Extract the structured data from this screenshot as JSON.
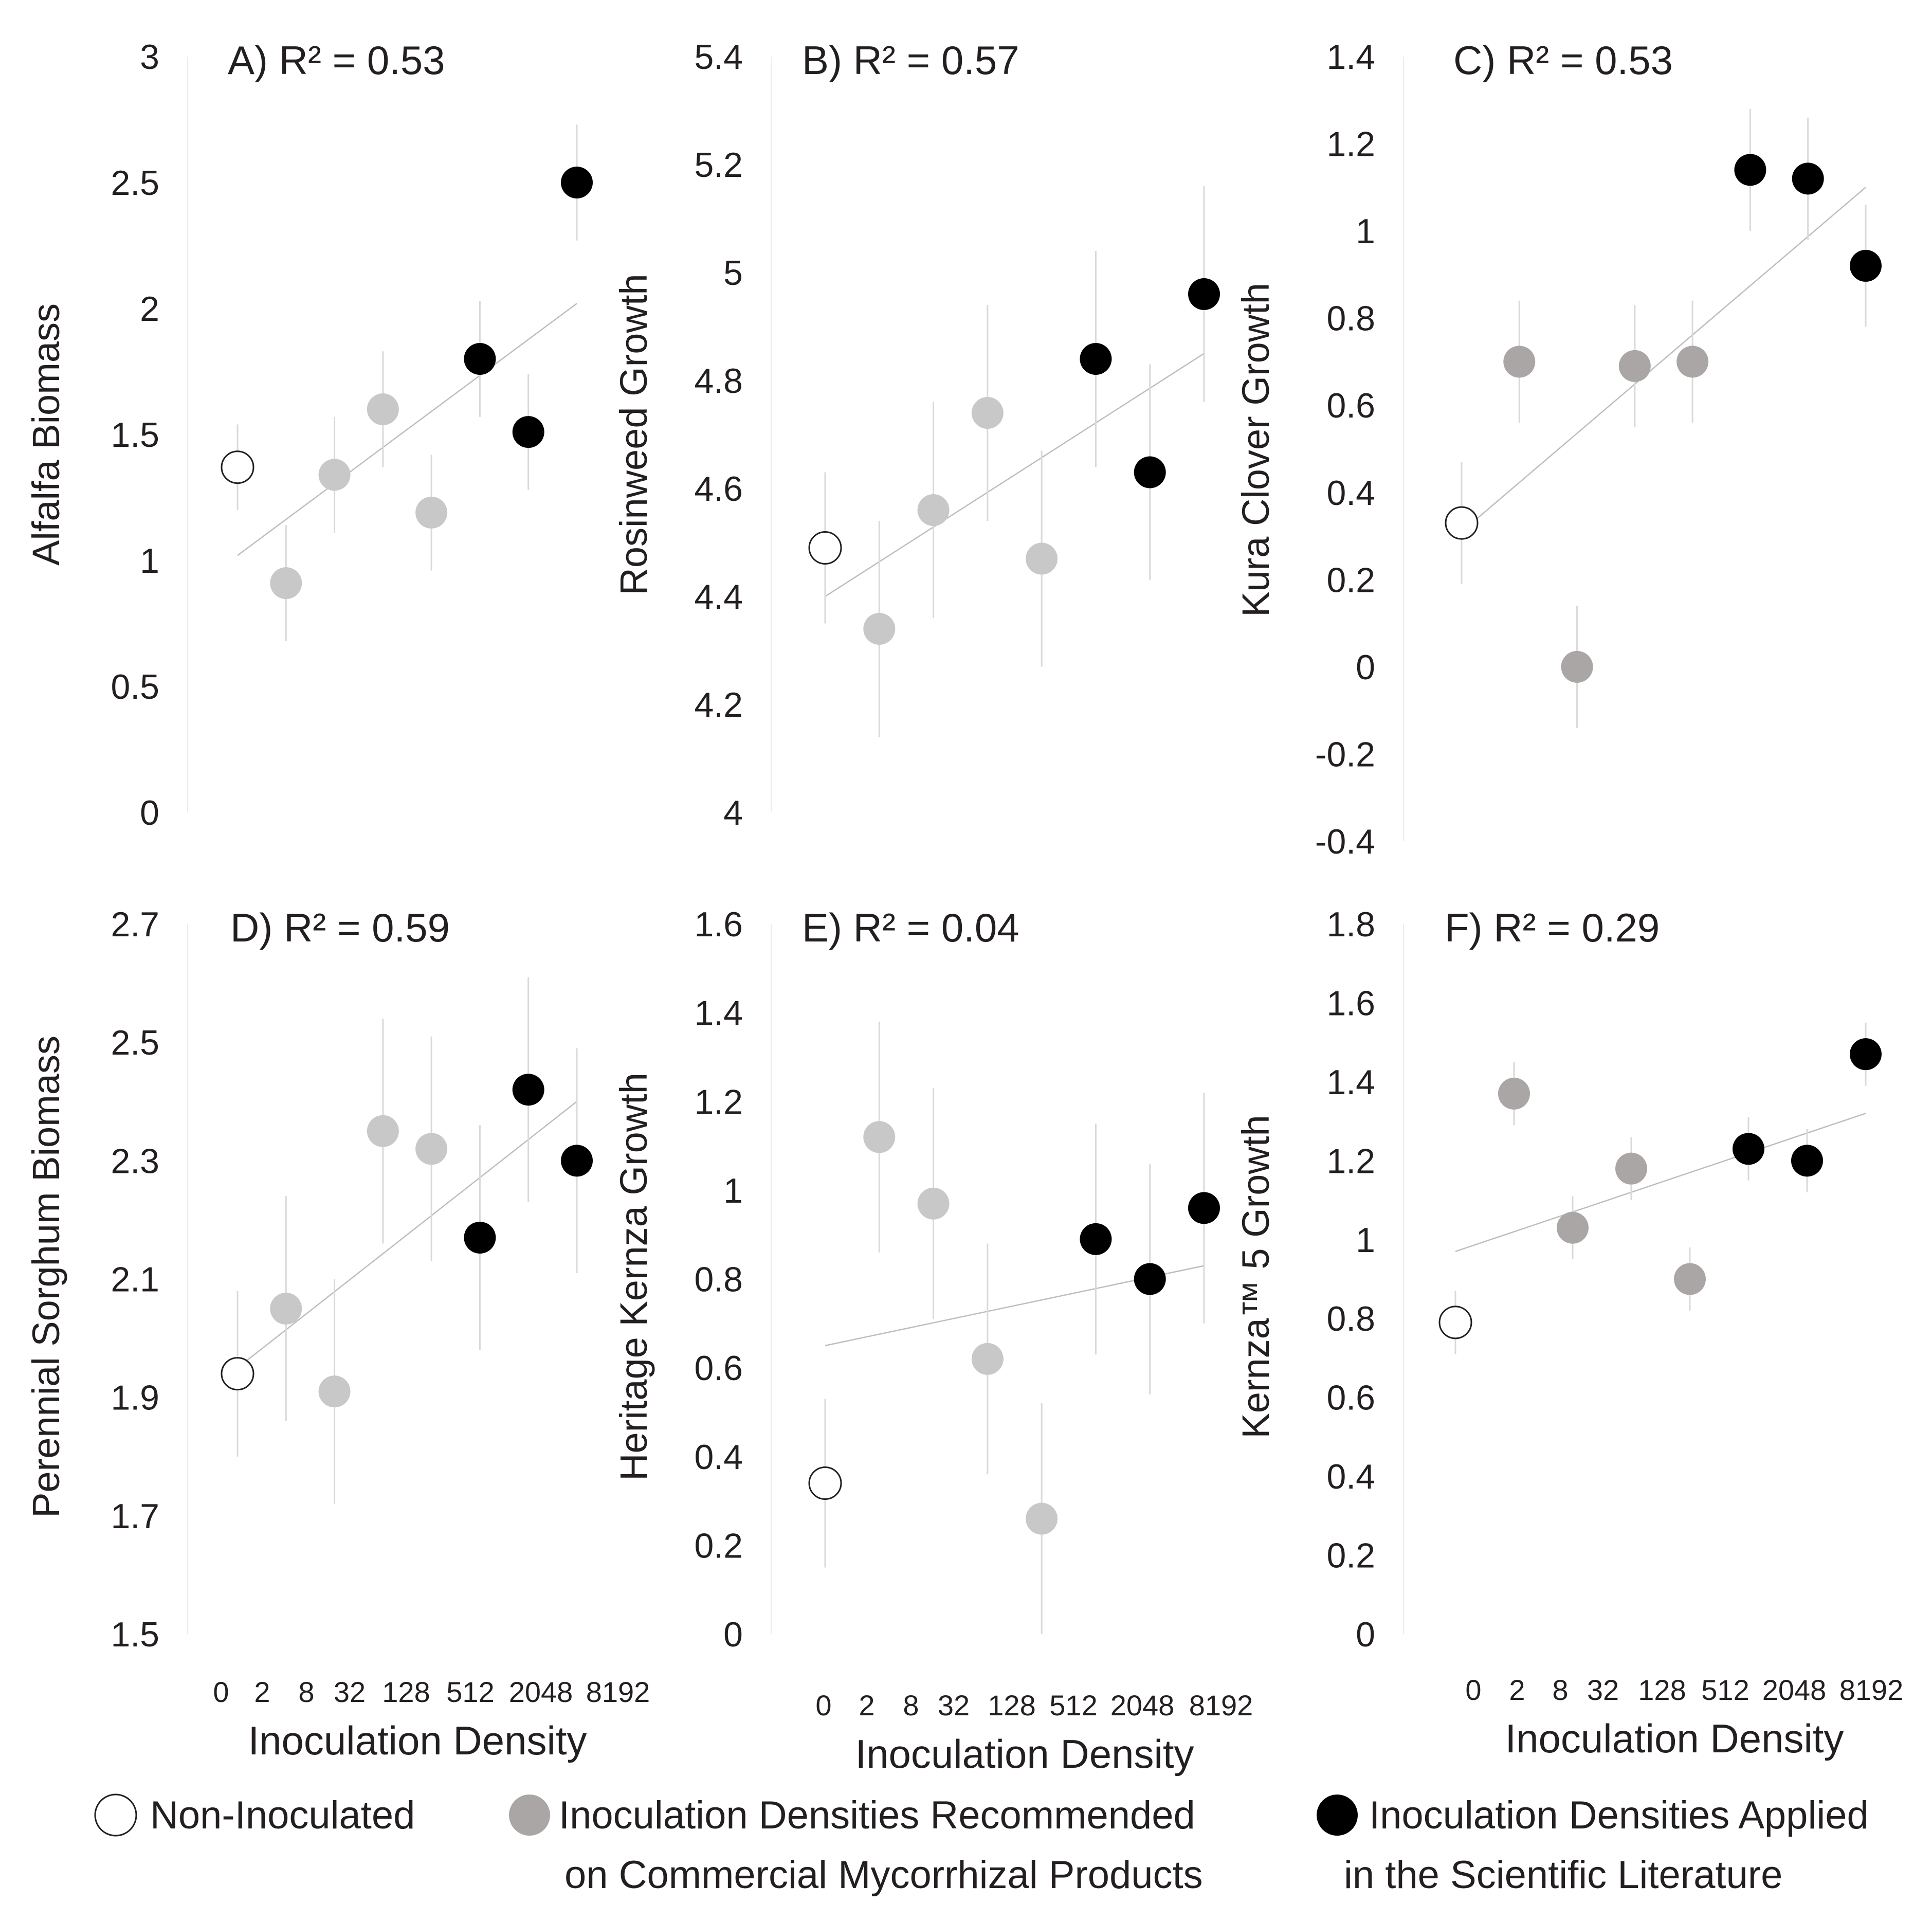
{
  "chart_data": [
    {
      "type": "scatter",
      "panel": "A",
      "title": "A) R² = 0.53",
      "ylabel": "Alfalfa Biomass",
      "xlabel": "Inoculation Density",
      "x_tick_labels": [
        "0",
        "2",
        "8",
        "32",
        "128",
        "512",
        "2048",
        "8192"
      ],
      "y_ticks": [
        0,
        0.5,
        1,
        1.5,
        2,
        2.5,
        3
      ],
      "y_tick_labels": [
        "0",
        "0.5",
        "1",
        "1.5",
        "2",
        "2.5",
        "3"
      ],
      "ylim": [
        0,
        3
      ],
      "trendline": {
        "x": [
          0,
          7
        ],
        "y": [
          1.02,
          2.02
        ]
      },
      "points": [
        {
          "x": 0,
          "y": 1.37,
          "error": 0.17,
          "group": "non"
        },
        {
          "x": 1,
          "y": 0.91,
          "error": 0.23,
          "group": "com"
        },
        {
          "x": 2,
          "y": 1.34,
          "error": 0.23,
          "group": "com"
        },
        {
          "x": 3,
          "y": 1.6,
          "error": 0.23,
          "group": "com"
        },
        {
          "x": 4,
          "y": 1.19,
          "error": 0.23,
          "group": "com"
        },
        {
          "x": 5,
          "y": 1.8,
          "error": 0.23,
          "group": "sci"
        },
        {
          "x": 6,
          "y": 1.51,
          "error": 0.23,
          "group": "sci"
        },
        {
          "x": 7,
          "y": 2.5,
          "error": 0.23,
          "group": "sci"
        }
      ]
    },
    {
      "type": "scatter",
      "panel": "B",
      "title": "B) R² = 0.57",
      "ylabel": "Rosinweed  Growth",
      "xlabel": "Inoculation Density",
      "x_tick_labels": [
        "0",
        "2",
        "8",
        "32",
        "128",
        "512",
        "2048",
        "8192"
      ],
      "y_ticks": [
        4,
        4.2,
        4.4,
        4.6,
        4.8,
        5,
        5.2,
        5.4
      ],
      "y_tick_labels": [
        "4",
        "4.2",
        "4.4",
        "4.6",
        "4.8",
        "5",
        "5.2",
        "5.4"
      ],
      "ylim": [
        4,
        5.4
      ],
      "trendline": {
        "x": [
          0,
          7
        ],
        "y": [
          4.4,
          4.85
        ]
      },
      "points": [
        {
          "x": 0,
          "y": 4.49,
          "error": 0.14,
          "group": "non"
        },
        {
          "x": 1,
          "y": 4.34,
          "error": 0.2,
          "group": "com"
        },
        {
          "x": 2,
          "y": 4.56,
          "error": 0.2,
          "group": "com"
        },
        {
          "x": 3,
          "y": 4.74,
          "error": 0.2,
          "group": "com"
        },
        {
          "x": 4,
          "y": 4.47,
          "error": 0.2,
          "group": "com"
        },
        {
          "x": 5,
          "y": 4.84,
          "error": 0.2,
          "group": "sci"
        },
        {
          "x": 6,
          "y": 4.63,
          "error": 0.2,
          "group": "sci"
        },
        {
          "x": 7,
          "y": 4.96,
          "error": 0.2,
          "group": "sci"
        }
      ]
    },
    {
      "type": "scatter",
      "panel": "C",
      "title": "C) R² = 0.53",
      "ylabel": "Kura Clover Growth",
      "xlabel": "Inoculation Density",
      "x_tick_labels": [
        "0",
        "2",
        "8",
        "32",
        "128",
        "512",
        "2048",
        "8192"
      ],
      "y_ticks": [
        -0.4,
        -0.2,
        0,
        0.2,
        0.4,
        0.6,
        0.8,
        1,
        1.2,
        1.4
      ],
      "y_tick_labels": [
        "-0.4",
        "-0.2",
        "0",
        "0.2",
        "0.4",
        "0.6",
        "0.8",
        "1",
        "1.2",
        "1.4"
      ],
      "ylim": [
        -0.4,
        1.4
      ],
      "trendline": {
        "x": [
          0,
          7
        ],
        "y": [
          0.31,
          1.1
        ]
      },
      "points": [
        {
          "x": 0,
          "y": 0.33,
          "error": 0.14,
          "group": "non"
        },
        {
          "x": 1,
          "y": 0.7,
          "error": 0.14,
          "group": "com"
        },
        {
          "x": 2,
          "y": 0.0,
          "error": 0.14,
          "group": "com"
        },
        {
          "x": 3,
          "y": 0.69,
          "error": 0.14,
          "group": "com"
        },
        {
          "x": 4,
          "y": 0.7,
          "error": 0.14,
          "group": "com"
        },
        {
          "x": 5,
          "y": 1.14,
          "error": 0.14,
          "group": "sci"
        },
        {
          "x": 6,
          "y": 1.12,
          "error": 0.14,
          "group": "sci"
        },
        {
          "x": 7,
          "y": 0.92,
          "error": 0.14,
          "group": "sci"
        }
      ]
    },
    {
      "type": "scatter",
      "panel": "D",
      "title": "D) R² = 0.59",
      "ylabel": "Perennial Sorghum Biomass",
      "xlabel": "Inoculation Density",
      "x_tick_labels": [
        "0",
        "2",
        "8",
        "32",
        "128",
        "512",
        "2048",
        "8192"
      ],
      "y_ticks": [
        1.5,
        1.7,
        1.9,
        2.1,
        2.3,
        2.5,
        2.7
      ],
      "y_tick_labels": [
        "1.5",
        "1.7",
        "1.9",
        "2.1",
        "2.3",
        "2.5",
        "2.7"
      ],
      "ylim": [
        1.5,
        2.7
      ],
      "trendline": {
        "x": [
          0,
          7
        ],
        "y": [
          1.95,
          2.4
        ]
      },
      "points": [
        {
          "x": 0,
          "y": 1.94,
          "error": 0.14,
          "group": "non"
        },
        {
          "x": 1,
          "y": 2.05,
          "error": 0.19,
          "group": "com"
        },
        {
          "x": 2,
          "y": 1.91,
          "error": 0.19,
          "group": "com"
        },
        {
          "x": 3,
          "y": 2.35,
          "error": 0.19,
          "group": "com"
        },
        {
          "x": 4,
          "y": 2.32,
          "error": 0.19,
          "group": "com"
        },
        {
          "x": 5,
          "y": 2.17,
          "error": 0.19,
          "group": "sci"
        },
        {
          "x": 6,
          "y": 2.42,
          "error": 0.19,
          "group": "sci"
        },
        {
          "x": 7,
          "y": 2.3,
          "error": 0.19,
          "group": "sci"
        }
      ]
    },
    {
      "type": "scatter",
      "panel": "E",
      "title": "E) R² = 0.04",
      "ylabel": "Heritage Kernza Growth",
      "xlabel": "Inoculation Density",
      "x_tick_labels": [
        "0",
        "2",
        "8",
        "32",
        "128",
        "512",
        "2048",
        "8192"
      ],
      "y_ticks": [
        0,
        0.2,
        0.4,
        0.6,
        0.8,
        1,
        1.2,
        1.4,
        1.6
      ],
      "y_tick_labels": [
        "0",
        "0.2",
        "0.4",
        "0.6",
        "0.8",
        "1",
        "1.2",
        "1.4",
        "1.6"
      ],
      "ylim": [
        0,
        1.6
      ],
      "trendline": {
        "x": [
          0,
          7
        ],
        "y": [
          0.65,
          0.83
        ]
      },
      "points": [
        {
          "x": 0,
          "y": 0.34,
          "error": 0.19,
          "group": "non"
        },
        {
          "x": 1,
          "y": 1.12,
          "error": 0.26,
          "group": "com"
        },
        {
          "x": 2,
          "y": 0.97,
          "error": 0.26,
          "group": "com"
        },
        {
          "x": 3,
          "y": 0.62,
          "error": 0.26,
          "group": "com"
        },
        {
          "x": 4,
          "y": 0.26,
          "error": 0.26,
          "group": "com"
        },
        {
          "x": 5,
          "y": 0.89,
          "error": 0.26,
          "group": "sci"
        },
        {
          "x": 6,
          "y": 0.8,
          "error": 0.26,
          "group": "sci"
        },
        {
          "x": 7,
          "y": 0.96,
          "error": 0.26,
          "group": "sci"
        }
      ]
    },
    {
      "type": "scatter",
      "panel": "F",
      "title": "F) R² = 0.29",
      "ylabel": "Kernza™ 5 Growth",
      "xlabel": "Inoculation Density",
      "x_tick_labels": [
        "0",
        "2",
        "8",
        "32",
        "128",
        "512",
        "2048",
        "8192"
      ],
      "y_ticks": [
        0,
        0.2,
        0.4,
        0.6,
        0.8,
        1,
        1.2,
        1.4,
        1.6,
        1.8
      ],
      "y_tick_labels": [
        "0",
        "0.2",
        "0.4",
        "0.6",
        "0.8",
        "1",
        "1.2",
        "1.4",
        "1.6",
        "1.8"
      ],
      "ylim": [
        0,
        1.8
      ],
      "trendline": {
        "x": [
          0,
          7
        ],
        "y": [
          0.97,
          1.32
        ]
      },
      "points": [
        {
          "x": 0,
          "y": 0.79,
          "error": 0.08,
          "group": "non"
        },
        {
          "x": 1,
          "y": 1.37,
          "error": 0.08,
          "group": "com"
        },
        {
          "x": 2,
          "y": 1.03,
          "error": 0.08,
          "group": "com"
        },
        {
          "x": 3,
          "y": 1.18,
          "error": 0.08,
          "group": "com"
        },
        {
          "x": 4,
          "y": 0.9,
          "error": 0.08,
          "group": "com"
        },
        {
          "x": 5,
          "y": 1.23,
          "error": 0.08,
          "group": "sci"
        },
        {
          "x": 6,
          "y": 1.2,
          "error": 0.08,
          "group": "sci"
        },
        {
          "x": 7,
          "y": 1.47,
          "error": 0.08,
          "group": "sci"
        }
      ]
    }
  ],
  "legend": {
    "items": [
      {
        "key": "non",
        "line1": "Non-Inoculated",
        "line2": ""
      },
      {
        "key": "com",
        "line1": "Inoculation Densities Recommended",
        "line2": "on Commercial Mycorrhizal Products"
      },
      {
        "key": "sci",
        "line1": "Inoculation Densities Applied",
        "line2": "in the Scientific Literature"
      }
    ]
  },
  "colors": {
    "non_fill": "#ffffff",
    "non_stroke": "#231f20",
    "com_fill_light": "#c8c8c8",
    "com_fill_dark": "#aaa6a6",
    "sci_fill": "#000000",
    "error_bar": "#d9d9d9",
    "trendline": "#bdbdbd",
    "axis_line": "#ececec",
    "text": "#231f20"
  }
}
